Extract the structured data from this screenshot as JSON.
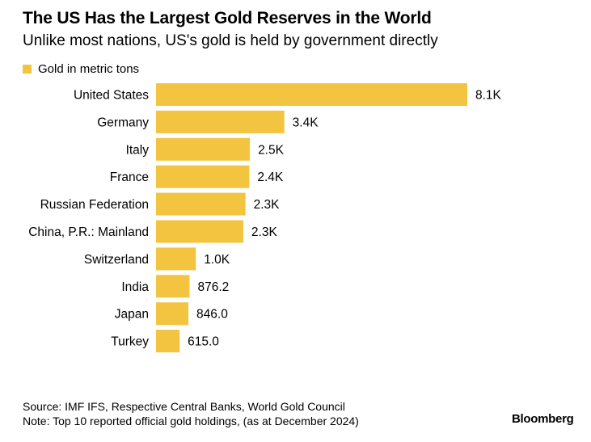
{
  "chart_data": {
    "type": "bar",
    "orientation": "horizontal",
    "title": "The US Has the Largest Gold Reserves in the World",
    "subtitle": "Unlike most nations, US's gold is held by government directly",
    "legend": "Gold in metric tons",
    "legend_position": "top-left",
    "categories": [
      "United States",
      "Germany",
      "Italy",
      "France",
      "Russian Federation",
      "China, P.R.: Mainland",
      "Switzerland",
      "India",
      "Japan",
      "Turkey"
    ],
    "values": [
      8133,
      3352,
      2452,
      2437,
      2336,
      2280,
      1040,
      876.2,
      846.0,
      615.0
    ],
    "value_labels": [
      "8.1K",
      "3.4K",
      "2.5K",
      "2.4K",
      "2.3K",
      "2.3K",
      "1.0K",
      "876.2",
      "846.0",
      "615.0"
    ],
    "color": "#f2c440",
    "xlim": [
      0,
      8133
    ],
    "grid": false
  },
  "footer": {
    "source": "Source: IMF IFS, Respective Central Banks, World Gold Council",
    "note": "Note: Top 10 reported official gold holdings, (as at December 2024)"
  },
  "brand": "Bloomberg"
}
